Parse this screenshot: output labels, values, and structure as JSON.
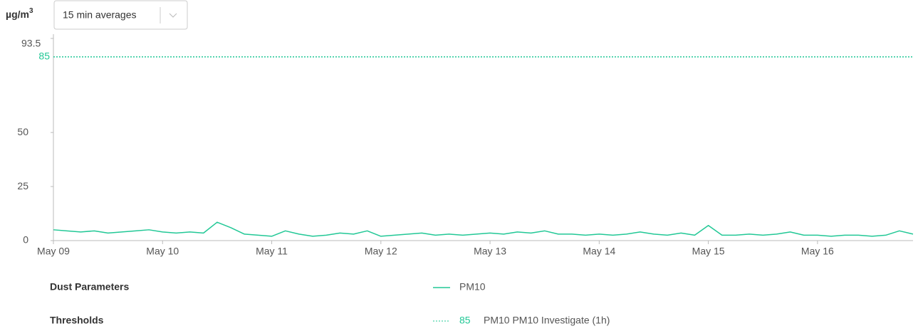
{
  "unit": "µg/m",
  "unit_sup": "3",
  "dropdown": {
    "label": "15 min averages"
  },
  "chart_data": {
    "type": "line",
    "categories": [
      "May 09",
      null,
      null,
      null,
      null,
      null,
      null,
      null,
      "May 10",
      null,
      null,
      null,
      null,
      null,
      null,
      null,
      "May 11",
      null,
      null,
      null,
      null,
      null,
      null,
      null,
      "May 12",
      null,
      null,
      null,
      null,
      null,
      null,
      null,
      "May 13",
      null,
      null,
      null,
      null,
      null,
      null,
      null,
      "May 14",
      null,
      null,
      null,
      null,
      null,
      null,
      null,
      "May 15",
      null,
      null,
      null,
      null,
      null,
      null,
      null,
      "May 16",
      null,
      null,
      null,
      null,
      null,
      null,
      null
    ],
    "series": [
      {
        "name": "PM10",
        "color": "#22c896",
        "values": [
          5,
          4.5,
          4,
          4.5,
          3.5,
          4,
          4.5,
          5,
          4,
          3.5,
          4,
          3.5,
          8.5,
          6,
          3,
          2.5,
          2,
          4.5,
          3,
          2,
          2.5,
          3.5,
          3,
          4.5,
          2,
          2.5,
          3,
          3.5,
          2.5,
          3,
          2.5,
          3,
          3.5,
          3,
          4,
          3.5,
          4.5,
          3,
          3,
          2.5,
          3,
          2.5,
          3,
          4,
          3,
          2.5,
          3.5,
          2.5,
          7,
          2.5,
          2.5,
          3,
          2.5,
          3,
          4,
          2.5,
          2.5,
          2,
          2.5,
          2.5,
          2,
          2.5,
          4.5,
          3
        ]
      }
    ],
    "thresholds": [
      {
        "value": 85,
        "name": "PM10 PM10 Investigate (1h)",
        "color": "#22c896"
      }
    ],
    "ylim": [
      0,
      93.5
    ],
    "yticks": [
      0,
      25,
      50,
      93.5
    ],
    "legend": {
      "series_title": "Dust Parameters",
      "threshold_title": "Thresholds"
    }
  }
}
